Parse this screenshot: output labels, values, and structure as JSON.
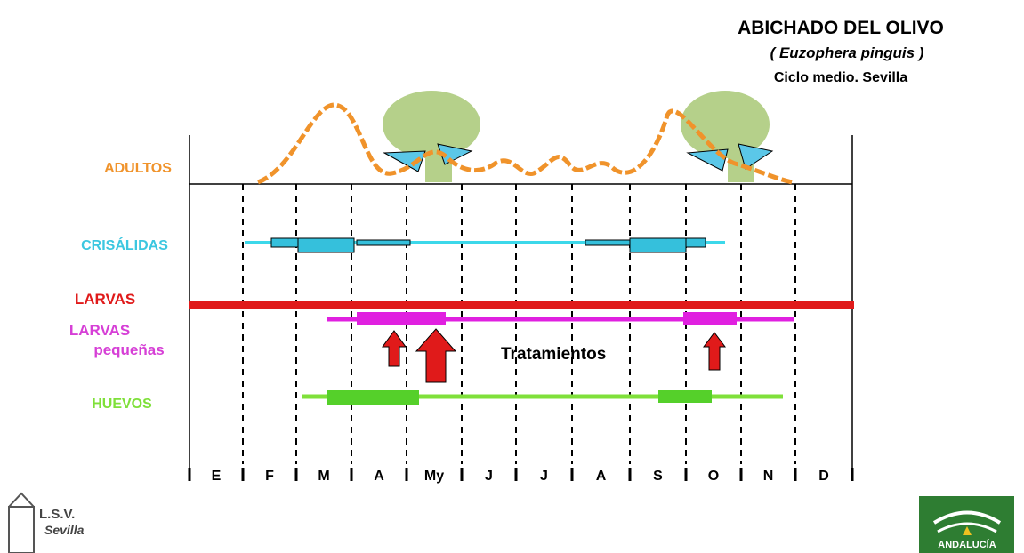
{
  "header": {
    "title": "ABICHADO DEL OLIVO",
    "subtitle": "( Euzophera pinguis )",
    "subtitle2": "Ciclo medio. Sevilla"
  },
  "rows": {
    "adults": "ADULTOS",
    "pupae": "CRISÁLIDAS",
    "larvae": "LARVAS",
    "small_larvae_1": "LARVAS",
    "small_larvae_2": "pequeñas",
    "eggs": "HUEVOS"
  },
  "treatments": "Tratamientos",
  "months": [
    "E",
    "F",
    "M",
    "A",
    "My",
    "J",
    "J",
    "A",
    "S",
    "O",
    "N",
    "D"
  ],
  "logos": {
    "lsv_1": "L.S.V.",
    "lsv_2": "Sevilla",
    "andalucia": "ANDALUCÍA"
  }
}
